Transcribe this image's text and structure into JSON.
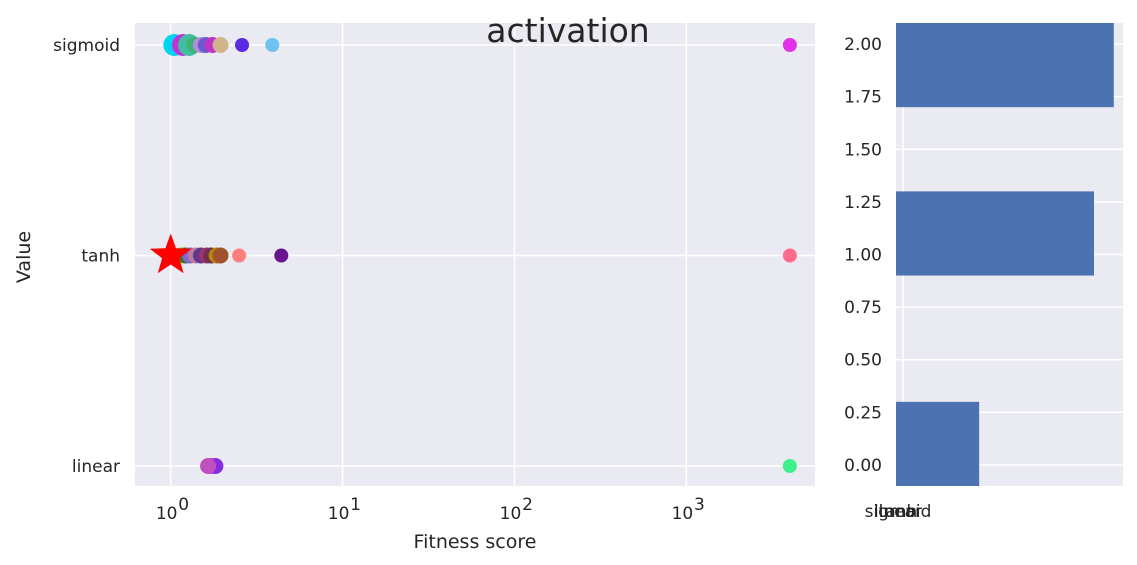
{
  "chart_data": [
    {
      "type": "scatter",
      "title": "activation",
      "xlabel": "Fitness score",
      "ylabel": "Value",
      "xscale": "log",
      "xlim": [
        0.62,
        5600
      ],
      "xticks": [
        {
          "value": 1,
          "base": "10",
          "exp": "0"
        },
        {
          "value": 10,
          "base": "10",
          "exp": "1"
        },
        {
          "value": 100,
          "base": "10",
          "exp": "2"
        },
        {
          "value": 1000,
          "base": "10",
          "exp": "3"
        }
      ],
      "categories": [
        "sigmoid",
        "tanh",
        "linear"
      ],
      "grid": true,
      "points": [
        {
          "x": 1.05,
          "y": "sigmoid",
          "size": "large",
          "color": "#00d3f2"
        },
        {
          "x": 1.18,
          "y": "sigmoid",
          "size": "large",
          "color": "#c233d6"
        },
        {
          "x": 1.28,
          "y": "sigmoid",
          "size": "large",
          "color": "#40bfa0"
        },
        {
          "x": 1.38,
          "y": "sigmoid",
          "size": "medium",
          "color": "#3cb371"
        },
        {
          "x": 1.5,
          "y": "sigmoid",
          "size": "medium",
          "color": "#b48cdc"
        },
        {
          "x": 1.6,
          "y": "sigmoid",
          "size": "medium",
          "color": "#6a5acd"
        },
        {
          "x": 1.75,
          "y": "sigmoid",
          "size": "medium",
          "color": "#c033c8"
        },
        {
          "x": 1.95,
          "y": "sigmoid",
          "size": "medium",
          "color": "#d2b48c"
        },
        {
          "x": 2.6,
          "y": "sigmoid",
          "size": "small",
          "color": "#5a2be2"
        },
        {
          "x": 3.9,
          "y": "sigmoid",
          "size": "small",
          "color": "#6ec3f0"
        },
        {
          "x": 4000,
          "y": "sigmoid",
          "size": "small",
          "color": "#e033e8"
        },
        {
          "x": 1.15,
          "y": "tanh",
          "size": "medium",
          "color": "#8fbc2f"
        },
        {
          "x": 1.22,
          "y": "tanh",
          "size": "medium",
          "color": "#4b6a2a"
        },
        {
          "x": 1.3,
          "y": "tanh",
          "size": "medium",
          "color": "#7a6bd0"
        },
        {
          "x": 1.4,
          "y": "tanh",
          "size": "medium",
          "color": "#c07aa0"
        },
        {
          "x": 1.5,
          "y": "tanh",
          "size": "medium",
          "color": "#5a3a8c"
        },
        {
          "x": 1.62,
          "y": "tanh",
          "size": "medium",
          "color": "#a0306e"
        },
        {
          "x": 1.72,
          "y": "tanh",
          "size": "medium",
          "color": "#703050"
        },
        {
          "x": 1.85,
          "y": "tanh",
          "size": "medium",
          "color": "#b8860b"
        },
        {
          "x": 1.95,
          "y": "tanh",
          "size": "medium",
          "color": "#a0522d"
        },
        {
          "x": 2.5,
          "y": "tanh",
          "size": "small",
          "color": "#ff7f7f"
        },
        {
          "x": 4.4,
          "y": "tanh",
          "size": "small",
          "color": "#6a1590"
        },
        {
          "x": 4000,
          "y": "tanh",
          "size": "small",
          "color": "#ff6b8a"
        },
        {
          "x": 1.7,
          "y": "linear",
          "size": "medium",
          "color": "#9b30d0"
        },
        {
          "x": 1.82,
          "y": "linear",
          "size": "medium",
          "color": "#8a2be2"
        },
        {
          "x": 1.65,
          "y": "linear",
          "size": "medium",
          "color": "#c050c0"
        },
        {
          "x": 4000,
          "y": "linear",
          "size": "small",
          "color": "#3cf08c"
        }
      ],
      "best": {
        "x": 1.0,
        "y": "tanh",
        "marker": "star",
        "color": "#ff0000"
      }
    },
    {
      "type": "bar",
      "orientation": "horizontal",
      "categories": [
        "linear",
        "tanh",
        "sigmoid"
      ],
      "values": [
        0.21,
        0.5,
        0.55
      ],
      "positions": [
        0.1,
        1.1,
        1.9
      ],
      "ylim": [
        -0.1,
        2.1
      ],
      "yticks": [
        "0.00",
        "0.25",
        "0.50",
        "0.75",
        "1.00",
        "1.25",
        "1.50",
        "1.75",
        "2.00"
      ],
      "xtick_labels": [
        "sigmoid",
        "linear",
        "tanh"
      ],
      "bar_color": "#4c72b0"
    }
  ]
}
